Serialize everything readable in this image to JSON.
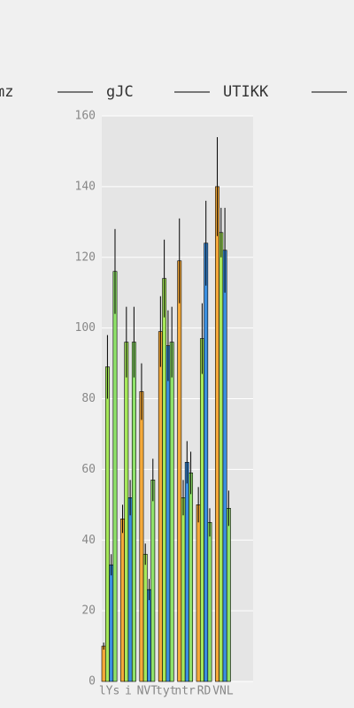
{
  "chart_data": {
    "type": "bar",
    "categories": [
      "lYs",
      "i",
      "NVT",
      "tyt",
      "ntr",
      "RD",
      "VNL"
    ],
    "series": [
      {
        "name": "mz",
        "color": "#f4a93a",
        "values": [
          10,
          46,
          82,
          99,
          119,
          50,
          140
        ],
        "errors": [
          1,
          4,
          8,
          10,
          12,
          5,
          14
        ]
      },
      {
        "name": "gJC",
        "color": "#a6e85a",
        "values": [
          89,
          96,
          36,
          114,
          52,
          97,
          127
        ],
        "errors": [
          9,
          10,
          3,
          11,
          5,
          10,
          7
        ]
      },
      {
        "name": "UTIKK",
        "color": "#3b8fe0",
        "values": [
          33,
          52,
          26,
          95,
          62,
          124,
          122
        ],
        "errors": [
          3,
          5,
          3,
          10,
          6,
          12,
          12
        ]
      },
      {
        "color": "#8fe26a",
        "values": [
          116,
          96,
          57,
          96,
          59,
          45,
          49
        ],
        "errors": [
          12,
          10,
          6,
          10,
          6,
          4,
          5
        ]
      }
    ],
    "ylim": [
      0,
      160
    ],
    "yticks": [
      0,
      20,
      40,
      60,
      80,
      100,
      120,
      140,
      160
    ],
    "grid": true
  }
}
